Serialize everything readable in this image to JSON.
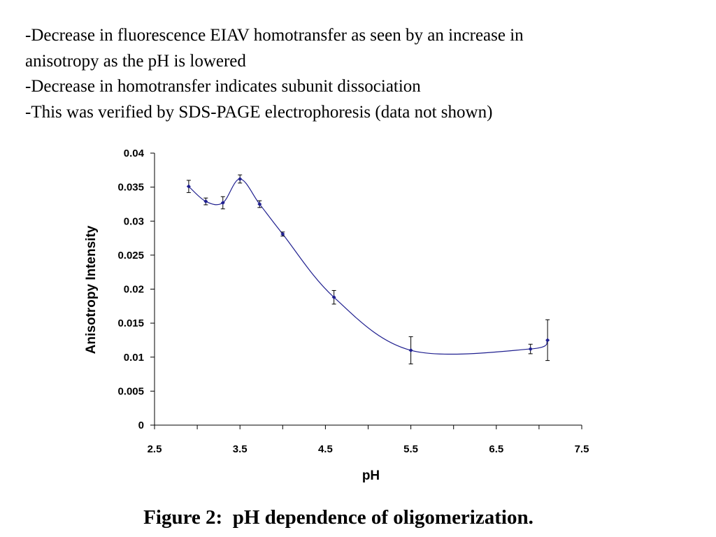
{
  "bullets": [
    "-Decrease in fluorescence EIAV homotransfer as seen by an increase in",
    "anisotropy as the pH is lowered",
    "-Decrease in homotransfer indicates subunit dissociation",
    "-This was verified by SDS-PAGE electrophoresis (data not shown)"
  ],
  "caption": "Figure 2:  pH dependence of oligomerization.",
  "chart_data": {
    "type": "scatter",
    "title": "",
    "xlabel": "pH",
    "ylabel": "Anisotropy Intensity",
    "xlim": [
      2.5,
      7.5
    ],
    "ylim": [
      0,
      0.04
    ],
    "xticks": [
      "2.5",
      "3.5",
      "4.5",
      "5.5",
      "6.5",
      "7.5"
    ],
    "yticks": [
      "0",
      "0.005",
      "0.01",
      "0.015",
      "0.02",
      "0.025",
      "0.03",
      "0.035",
      "0.04"
    ],
    "grid": false,
    "legend": "none",
    "line": "smoothed",
    "color": "#1f1f8f",
    "series": [
      {
        "x": [
          2.9,
          3.1,
          3.3,
          3.5,
          3.73,
          4.0,
          4.6,
          5.5,
          6.9,
          7.1
        ],
        "y": [
          0.0351,
          0.0329,
          0.0327,
          0.0362,
          0.0325,
          0.0281,
          0.0188,
          0.011,
          0.0112,
          0.0125
        ],
        "error": [
          0.0009,
          0.0005,
          0.0009,
          0.0006,
          0.0005,
          0.0003,
          0.001,
          0.002,
          0.0007,
          0.003
        ]
      }
    ]
  }
}
